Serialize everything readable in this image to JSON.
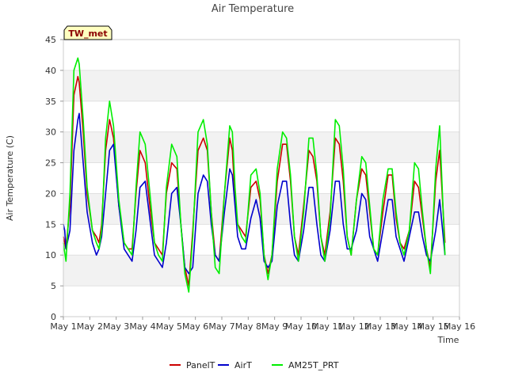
{
  "chart_data": {
    "type": "line",
    "title": "Air Temperature",
    "xlabel": "Time",
    "ylabel": "Air Temperature (C)",
    "badge": "TW_met",
    "xlim": [
      1,
      16
    ],
    "ylim": [
      0,
      45
    ],
    "yticks": [
      0,
      5,
      10,
      15,
      20,
      25,
      30,
      35,
      40,
      45
    ],
    "xticks": [
      {
        "value": 1,
        "label": "May 1"
      },
      {
        "value": 2,
        "label": "May 2"
      },
      {
        "value": 3,
        "label": "May 3"
      },
      {
        "value": 4,
        "label": "May 4"
      },
      {
        "value": 5,
        "label": "May 5"
      },
      {
        "value": 6,
        "label": "May 6"
      },
      {
        "value": 7,
        "label": "May 7"
      },
      {
        "value": 8,
        "label": "May 8"
      },
      {
        "value": 9,
        "label": "May 9"
      },
      {
        "value": 10,
        "label": "May 10"
      },
      {
        "value": 11,
        "label": "May 11"
      },
      {
        "value": 12,
        "label": "May 12"
      },
      {
        "value": 13,
        "label": "May 13"
      },
      {
        "value": 14,
        "label": "May 14"
      },
      {
        "value": 15,
        "label": "May 15"
      },
      {
        "value": 16,
        "label": "May 16"
      }
    ],
    "grid": "horizontal bands",
    "legend_position": "bottom",
    "series": [
      {
        "name": "PanelT",
        "color": "#cc0000",
        "x": [
          1.0,
          1.1,
          1.25,
          1.4,
          1.55,
          1.6,
          1.75,
          1.9,
          2.1,
          2.25,
          2.35,
          2.45,
          2.6,
          2.75,
          2.9,
          3.1,
          3.3,
          3.45,
          3.6,
          3.75,
          3.9,
          4.1,
          4.3,
          4.45,
          4.6,
          4.75,
          4.9,
          5.1,
          5.3,
          5.45,
          5.6,
          5.75,
          5.9,
          6.1,
          6.3,
          6.45,
          6.6,
          6.75,
          6.9,
          7.1,
          7.3,
          7.4,
          7.5,
          7.6,
          7.75,
          7.9,
          8.1,
          8.3,
          8.45,
          8.6,
          8.75,
          8.9,
          9.1,
          9.3,
          9.45,
          9.6,
          9.75,
          9.9,
          10.1,
          10.3,
          10.45,
          10.6,
          10.75,
          10.9,
          11.1,
          11.3,
          11.45,
          11.6,
          11.75,
          11.9,
          12.1,
          12.3,
          12.45,
          12.6,
          12.75,
          12.9,
          13.1,
          13.3,
          13.45,
          13.6,
          13.75,
          13.9,
          14.1,
          14.3,
          14.45,
          14.6,
          14.75,
          14.9,
          15.1,
          15.25,
          15.45
        ],
        "y": [
          13,
          11,
          18,
          36,
          39,
          38,
          30,
          20,
          14,
          13,
          12,
          15,
          27,
          32,
          29,
          18,
          12,
          11,
          11,
          20,
          27,
          25,
          17,
          12,
          11,
          10,
          20,
          25,
          24,
          15,
          8,
          5,
          14,
          27,
          29,
          27,
          17,
          10,
          9,
          20,
          29,
          27,
          19,
          15,
          14,
          13,
          21,
          22,
          19,
          10,
          7,
          10,
          22,
          28,
          28,
          22,
          13,
          10,
          18,
          27,
          26,
          22,
          13,
          10,
          17,
          29,
          28,
          22,
          13,
          10,
          19,
          24,
          23,
          17,
          11,
          10,
          17,
          23,
          23,
          16,
          12,
          11,
          14,
          22,
          21,
          16,
          11,
          8,
          22,
          27,
          12
        ]
      },
      {
        "name": "AirT",
        "color": "#0000cc",
        "x": [
          1.0,
          1.05,
          1.1,
          1.25,
          1.4,
          1.55,
          1.6,
          1.75,
          1.9,
          2.1,
          2.25,
          2.35,
          2.45,
          2.6,
          2.75,
          2.9,
          3.1,
          3.3,
          3.45,
          3.6,
          3.75,
          3.9,
          4.1,
          4.3,
          4.45,
          4.6,
          4.75,
          4.9,
          5.1,
          5.3,
          5.45,
          5.6,
          5.75,
          5.9,
          6.1,
          6.3,
          6.45,
          6.6,
          6.75,
          6.9,
          7.1,
          7.3,
          7.4,
          7.5,
          7.6,
          7.75,
          7.9,
          8.1,
          8.3,
          8.45,
          8.6,
          8.75,
          8.9,
          9.1,
          9.3,
          9.45,
          9.6,
          9.75,
          9.9,
          10.1,
          10.3,
          10.45,
          10.6,
          10.75,
          10.9,
          11.1,
          11.3,
          11.45,
          11.6,
          11.75,
          11.9,
          12.1,
          12.3,
          12.45,
          12.6,
          12.75,
          12.9,
          13.1,
          13.3,
          13.45,
          13.6,
          13.75,
          13.9,
          14.1,
          14.3,
          14.45,
          14.6,
          14.75,
          14.9,
          15.1,
          15.25,
          15.45
        ],
        "y": [
          15,
          14,
          11,
          14,
          27,
          32,
          33,
          25,
          17,
          12,
          10,
          11,
          13,
          20,
          27,
          28,
          18,
          11,
          10,
          9,
          14,
          21,
          22,
          15,
          10,
          9,
          8,
          12,
          20,
          21,
          15,
          8,
          7,
          8,
          20,
          23,
          22,
          15,
          10,
          9,
          17,
          24,
          23,
          18,
          13,
          11,
          11,
          16,
          19,
          16,
          9,
          8,
          9,
          18,
          22,
          22,
          15,
          10,
          9,
          14,
          21,
          21,
          15,
          10,
          9,
          14,
          22,
          22,
          15,
          11,
          11,
          14,
          20,
          19,
          13,
          11,
          9,
          14,
          19,
          19,
          13,
          11,
          9,
          13,
          17,
          17,
          13,
          10,
          9,
          14,
          19,
          10
        ]
      },
      {
        "name": "AM25T_PRT",
        "color": "#00ee00",
        "x": [
          1.0,
          1.1,
          1.25,
          1.4,
          1.55,
          1.6,
          1.75,
          1.9,
          2.1,
          2.25,
          2.35,
          2.45,
          2.6,
          2.75,
          2.9,
          3.1,
          3.3,
          3.45,
          3.6,
          3.75,
          3.9,
          4.1,
          4.3,
          4.45,
          4.6,
          4.75,
          4.9,
          5.1,
          5.3,
          5.45,
          5.6,
          5.75,
          5.9,
          6.1,
          6.3,
          6.45,
          6.6,
          6.75,
          6.9,
          7.1,
          7.3,
          7.4,
          7.5,
          7.6,
          7.75,
          7.9,
          8.1,
          8.3,
          8.45,
          8.6,
          8.75,
          8.9,
          9.1,
          9.3,
          9.45,
          9.6,
          9.75,
          9.9,
          10.1,
          10.3,
          10.45,
          10.6,
          10.75,
          10.9,
          11.1,
          11.3,
          11.45,
          11.6,
          11.75,
          11.9,
          12.1,
          12.3,
          12.45,
          12.6,
          12.75,
          12.9,
          13.1,
          13.3,
          13.45,
          13.6,
          13.75,
          13.9,
          14.1,
          14.3,
          14.45,
          14.6,
          14.75,
          14.9,
          15.1,
          15.25,
          15.45
        ],
        "y": [
          12,
          9,
          20,
          40,
          42,
          41,
          32,
          21,
          14,
          12,
          11,
          14,
          29,
          35,
          31,
          19,
          12,
          11,
          10,
          21,
          30,
          28,
          19,
          12,
          10,
          9,
          21,
          28,
          26,
          15,
          7,
          4,
          13,
          30,
          32,
          28,
          17,
          8,
          7,
          20,
          31,
          30,
          21,
          15,
          13,
          12,
          23,
          24,
          20,
          10,
          6,
          10,
          24,
          30,
          29,
          23,
          13,
          9,
          17,
          29,
          29,
          23,
          13,
          9,
          16,
          32,
          31,
          24,
          13,
          10,
          19,
          26,
          25,
          18,
          11,
          10,
          19,
          24,
          24,
          17,
          12,
          10,
          14,
          25,
          24,
          17,
          11,
          7,
          24,
          31,
          10
        ]
      }
    ]
  }
}
